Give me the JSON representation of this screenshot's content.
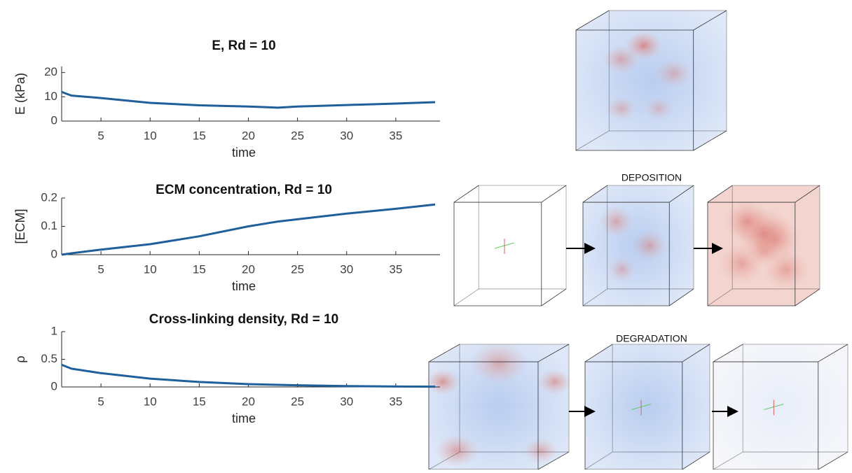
{
  "chart_data": [
    {
      "type": "line",
      "title": "E, Rd = 10",
      "x_label": "time",
      "y_label": "E (kPa)",
      "color": "#1f5f9a",
      "x": [
        1,
        2,
        5,
        10,
        15,
        20,
        23,
        25,
        30,
        35,
        39
      ],
      "values": [
        12,
        10.5,
        9.5,
        7.5,
        6.5,
        6,
        5.5,
        6,
        6.6,
        7.2,
        7.8
      ],
      "xlim": [
        1,
        39.5
      ],
      "xticks": [
        5,
        10,
        15,
        20,
        25,
        30,
        35
      ],
      "ylim": [
        0,
        22.5
      ],
      "yticks": [
        0,
        10,
        20
      ]
    },
    {
      "type": "line",
      "title": "ECM concentration, Rd = 10",
      "x_label": "time",
      "y_label": "[ECM]",
      "color": "#1f5f9a",
      "x": [
        1,
        2,
        5,
        10,
        15,
        20,
        23,
        25,
        30,
        35,
        39
      ],
      "values": [
        0,
        0.005,
        0.018,
        0.037,
        0.065,
        0.1,
        0.117,
        0.125,
        0.145,
        0.162,
        0.177
      ],
      "xlim": [
        1,
        39.5
      ],
      "xticks": [
        5,
        10,
        15,
        20,
        25,
        30,
        35
      ],
      "ylim": [
        0,
        0.2
      ],
      "yticks": [
        0,
        0.1,
        0.2
      ]
    },
    {
      "type": "line",
      "title": "Cross-linking density, Rd = 10",
      "x_label": "time",
      "y_label": "ρ",
      "color": "#1f5f9a",
      "x": [
        1,
        2,
        5,
        10,
        15,
        20,
        23,
        25,
        30,
        35,
        39
      ],
      "values": [
        0.4,
        0.33,
        0.25,
        0.15,
        0.09,
        0.05,
        0.038,
        0.03,
        0.015,
        0.008,
        0.005
      ],
      "xlim": [
        1,
        39.5
      ],
      "xticks": [
        5,
        10,
        15,
        20,
        25,
        30,
        35
      ],
      "ylim": [
        0,
        1
      ],
      "yticks": [
        0,
        0.5,
        1
      ]
    }
  ],
  "panel_labels": [
    "DEPOSITION",
    "DEGRADATION"
  ]
}
